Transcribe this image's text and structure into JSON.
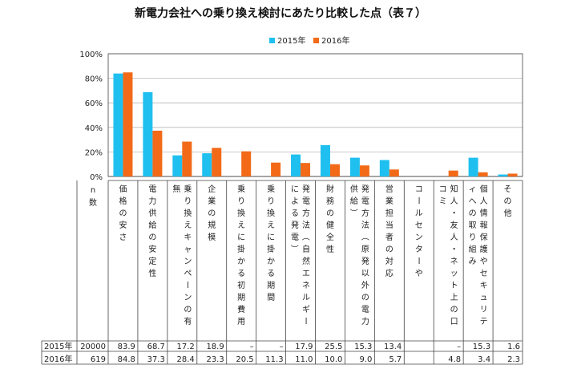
{
  "chart_data": {
    "type": "bar",
    "title": "新電力会社への乗り換え検討にあたり比較した点（表７）",
    "ylim": [
      0,
      100
    ],
    "y_ticks": [
      "0%",
      "20%",
      "40%",
      "60%",
      "80%",
      "100%"
    ],
    "grid": "horizontal",
    "legend_position": "top-center",
    "colors": {
      "2015年": "#1fc0ef",
      "2016年": "#f26a18"
    },
    "n_header": "n\n数",
    "categories": [
      "価格の安さ",
      "電力供給の安定性",
      "乗り換えキャンペーンの有無",
      "企業の規模",
      "乗り換えに掛かる初期費用",
      "乗り換えに掛かる期間",
      "発電方法（自然エネルギーによる発電）",
      "財務の健全性",
      "発電方法（原発以外の電力供給）",
      "営業担当者の対応",
      "コールセンターや",
      "知人・友人・ネット上の口コミ",
      "個人情報保護やセキュリティへの取り組み",
      "その他"
    ],
    "series": [
      {
        "name": "2015年",
        "n": "20000",
        "values": [
          83.9,
          68.7,
          17.2,
          18.9,
          null,
          null,
          17.9,
          25.5,
          15.3,
          13.4,
          null,
          null,
          15.3,
          1.6
        ],
        "labels": [
          "83.9",
          "68.7",
          "17.2",
          "18.9",
          "–",
          "–",
          "17.9",
          "25.5",
          "15.3",
          "13.4",
          "",
          "–",
          "15.3",
          "1.6"
        ]
      },
      {
        "name": "2016年",
        "n": "619",
        "values": [
          84.8,
          37.3,
          28.4,
          23.3,
          20.5,
          11.3,
          11.0,
          10.0,
          9.0,
          5.7,
          null,
          4.8,
          3.4,
          2.3
        ],
        "labels": [
          "84.8",
          "37.3",
          "28.4",
          "23.3",
          "20.5",
          "11.3",
          "11.0",
          "10.0",
          "9.0",
          "5.7",
          "",
          "4.8",
          "3.4",
          "2.3"
        ]
      }
    ]
  }
}
